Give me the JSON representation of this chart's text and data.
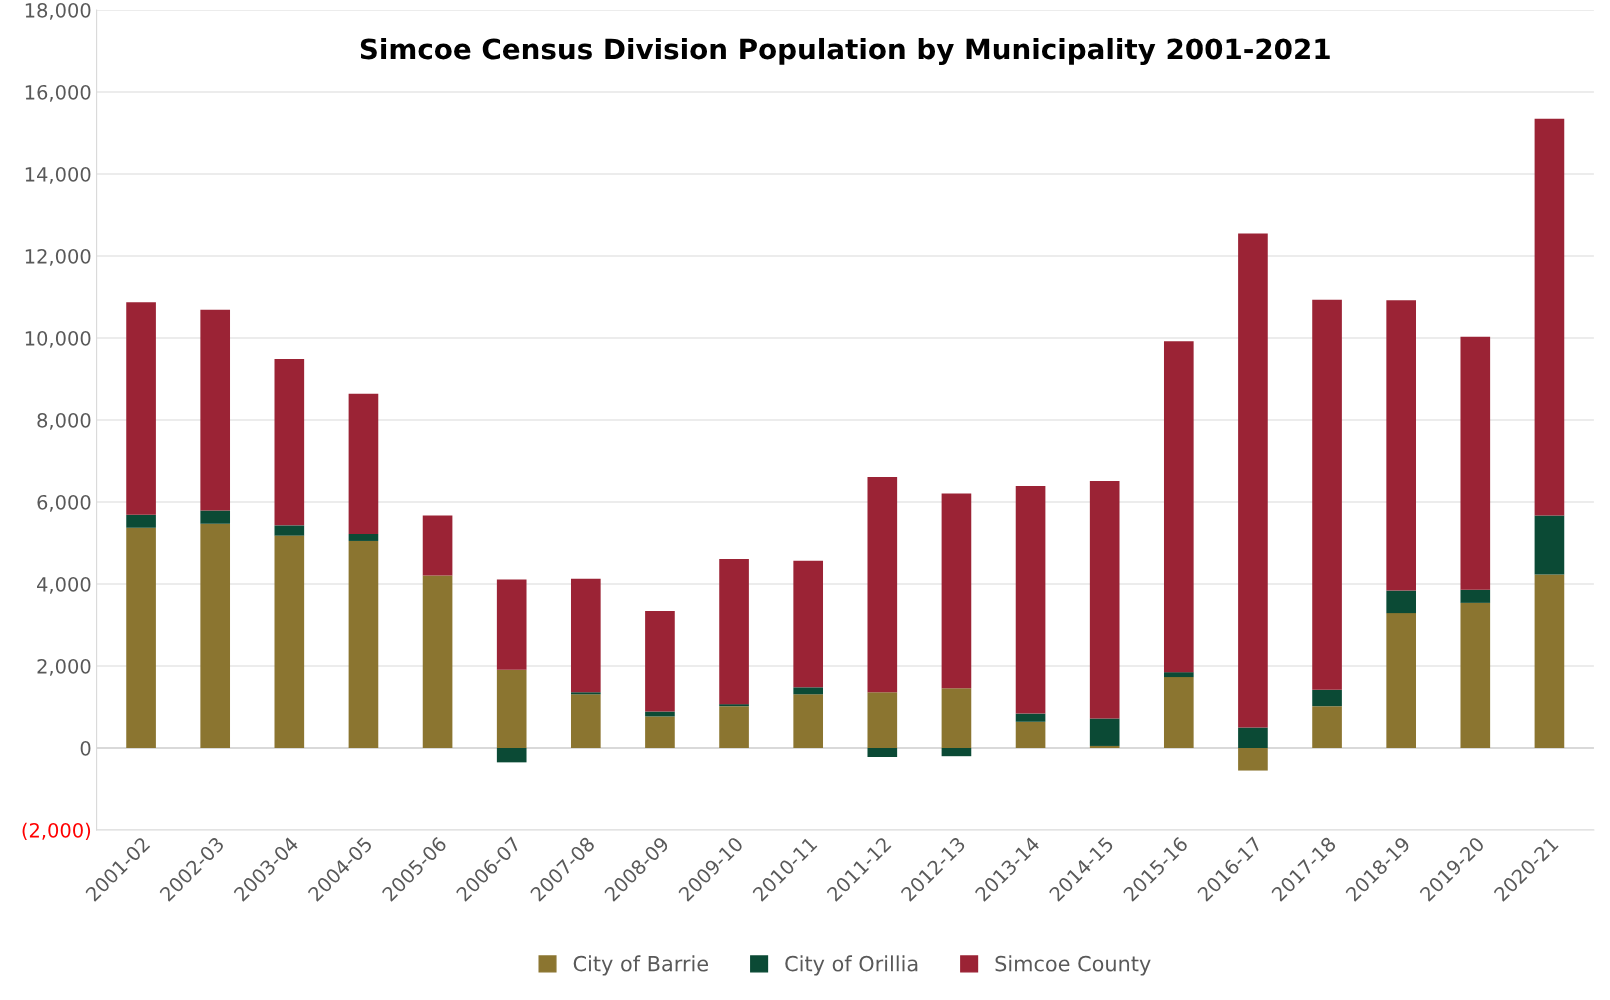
{
  "chart_data": {
    "type": "bar",
    "title": "Simcoe Census Division Population by Municipality 2001-2021",
    "stacked": true,
    "categories": [
      "2001-02",
      "2002-03",
      "2003-04",
      "2004-05",
      "2005-06",
      "2006-07",
      "2007-08",
      "2008-09",
      "2009-10",
      "2010-11",
      "2011-12",
      "2012-13",
      "2013-14",
      "2014-15",
      "2015-16",
      "2016-17",
      "2017-18",
      "2018-19",
      "2019-20",
      "2020-21"
    ],
    "series": [
      {
        "name": "City of Barrie",
        "color": "#8b7530",
        "values": [
          5370,
          5470,
          5180,
          5050,
          4210,
          1910,
          1310,
          770,
          1020,
          1310,
          1360,
          1460,
          640,
          50,
          1730,
          -550,
          1020,
          3290,
          3540,
          4230
        ]
      },
      {
        "name": "City of Orillia",
        "color": "#0b4a35",
        "values": [
          320,
          320,
          250,
          170,
          null,
          -350,
          50,
          120,
          50,
          170,
          -220,
          -200,
          200,
          670,
          120,
          500,
          400,
          550,
          320,
          1440
        ]
      },
      {
        "name": "Simcoe County",
        "color": "#9b2335",
        "values": [
          5180,
          4900,
          4060,
          3420,
          1460,
          2200,
          2770,
          2450,
          3540,
          3090,
          5250,
          4750,
          5550,
          5790,
          8070,
          12050,
          9510,
          7080,
          6170,
          9680
        ]
      }
    ],
    "ylim": [
      -2000,
      18000
    ],
    "yticks": [
      {
        "value": -2000,
        "label": "(2,000)"
      },
      {
        "value": 0,
        "label": "0"
      },
      {
        "value": 2000,
        "label": "2,000"
      },
      {
        "value": 4000,
        "label": "4,000"
      },
      {
        "value": 6000,
        "label": "6,000"
      },
      {
        "value": 8000,
        "label": "8,000"
      },
      {
        "value": 10000,
        "label": "10,000"
      },
      {
        "value": 12000,
        "label": "12,000"
      },
      {
        "value": 14000,
        "label": "14,000"
      },
      {
        "value": 16000,
        "label": "16,000"
      },
      {
        "value": 18000,
        "label": "18,000"
      }
    ],
    "grid": "y",
    "legend": "bottom"
  }
}
